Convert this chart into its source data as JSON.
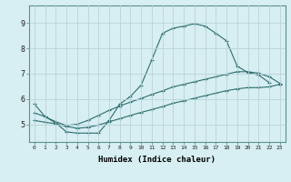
{
  "xlabel": "Humidex (Indice chaleur)",
  "bg_color": "#d7eef2",
  "grid_color": "#b8d4d8",
  "line_color": "#2d6e6e",
  "xlim": [
    -0.5,
    23.5
  ],
  "ylim": [
    4.3,
    9.7
  ],
  "line1_x": [
    0,
    1,
    2,
    3,
    4,
    5,
    6,
    7,
    8,
    9,
    10,
    11,
    12,
    13,
    14,
    15,
    16,
    17,
    18,
    19,
    20,
    21,
    22
  ],
  "line1_y": [
    5.8,
    5.3,
    5.05,
    4.7,
    4.65,
    4.65,
    4.65,
    5.15,
    5.8,
    6.1,
    6.55,
    7.55,
    8.6,
    8.8,
    8.88,
    8.98,
    8.88,
    8.6,
    8.3,
    7.3,
    7.05,
    6.95,
    6.65
  ],
  "line2_x": [
    0,
    1,
    2,
    3,
    4,
    5,
    6,
    7,
    8,
    9,
    10,
    11,
    12,
    13,
    14,
    15,
    16,
    17,
    18,
    19,
    20,
    21,
    22,
    23
  ],
  "line2_y": [
    5.45,
    5.3,
    5.1,
    4.95,
    5.0,
    5.15,
    5.35,
    5.55,
    5.72,
    5.88,
    6.02,
    6.18,
    6.32,
    6.48,
    6.58,
    6.68,
    6.78,
    6.88,
    6.98,
    7.08,
    7.08,
    7.02,
    6.88,
    6.62
  ],
  "line3_x": [
    0,
    1,
    2,
    3,
    4,
    5,
    6,
    7,
    8,
    9,
    10,
    11,
    12,
    13,
    14,
    15,
    16,
    17,
    18,
    19,
    20,
    21,
    22,
    23
  ],
  "line3_y": [
    5.15,
    5.08,
    5.02,
    4.92,
    4.84,
    4.88,
    4.97,
    5.1,
    5.22,
    5.35,
    5.47,
    5.58,
    5.7,
    5.83,
    5.93,
    6.03,
    6.13,
    6.23,
    6.33,
    6.4,
    6.45,
    6.45,
    6.48,
    6.58
  ],
  "yticks": [
    5,
    6,
    7,
    8,
    9
  ],
  "xticks": [
    0,
    1,
    2,
    3,
    4,
    5,
    6,
    7,
    8,
    9,
    10,
    11,
    12,
    13,
    14,
    15,
    16,
    17,
    18,
    19,
    20,
    21,
    22,
    23
  ]
}
